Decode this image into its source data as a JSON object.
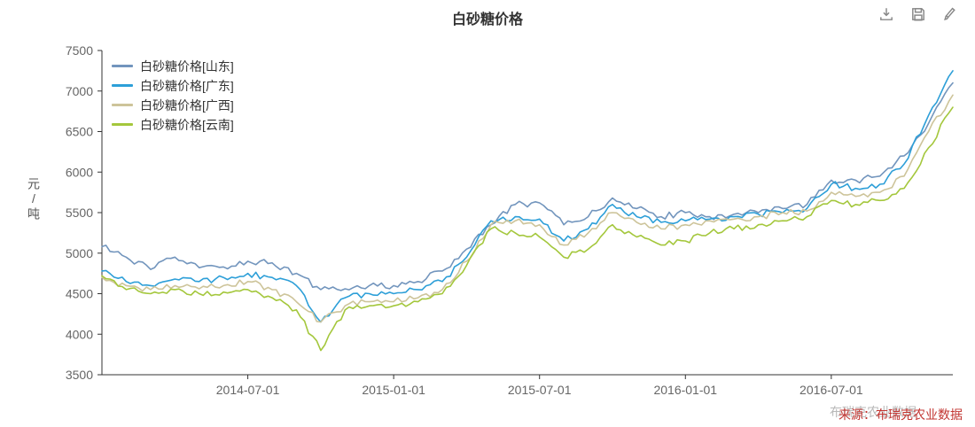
{
  "title": "白砂糖价格",
  "toolbox": {
    "icons": [
      "download-icon",
      "save-icon",
      "brush-icon"
    ]
  },
  "y_axis": {
    "name": "元/吨",
    "ticks": [
      3500,
      4000,
      4500,
      5000,
      5500,
      6000,
      6500,
      7000,
      7500
    ]
  },
  "x_axis": {
    "tick_labels": [
      "2014-07-01",
      "2015-01-01",
      "2015-07-01",
      "2016-01-01",
      "2016-07-01"
    ]
  },
  "legend": [
    "白砂糖价格[山东]",
    "白砂糖价格[广东]",
    "白砂糖价格[广西]",
    "白砂糖价格[云南]"
  ],
  "source": {
    "prefix": "来源：",
    "name": "布瑞克农业数据",
    "watermark": "布瑞克农业数据",
    "color": "#c23531"
  },
  "colors": {
    "axis": "#333333",
    "tick_text": "#666666"
  },
  "chart_data": {
    "type": "line",
    "title": "白砂糖价格",
    "ylabel": "元/吨",
    "ylim": [
      3500,
      7500
    ],
    "y_tick_step": 500,
    "grid": false,
    "legend_position": "top-left",
    "x": [
      "2014-01",
      "2014-02",
      "2014-03",
      "2014-04",
      "2014-05",
      "2014-06",
      "2014-07",
      "2014-08",
      "2014-09",
      "2014-10",
      "2014-11",
      "2014-12",
      "2015-01",
      "2015-02",
      "2015-03",
      "2015-04",
      "2015-05",
      "2015-06",
      "2015-07",
      "2015-08",
      "2015-09",
      "2015-10",
      "2015-11",
      "2015-12",
      "2016-01",
      "2016-02",
      "2016-03",
      "2016-04",
      "2016-05",
      "2016-06",
      "2016-07",
      "2016-08",
      "2016-09",
      "2016-10",
      "2016-11",
      "2016-12"
    ],
    "x_tick_labels": [
      "2014-07-01",
      "2015-01-01",
      "2015-07-01",
      "2016-01-01",
      "2016-07-01"
    ],
    "x_tick_indices": [
      6,
      12,
      18,
      24,
      30
    ],
    "series": [
      {
        "name": "白砂糖价格[山东]",
        "color": "#7295bd",
        "values": [
          5080,
          4950,
          4800,
          4950,
          4820,
          4830,
          4900,
          4880,
          4750,
          4550,
          4560,
          4600,
          4600,
          4650,
          4780,
          5050,
          5350,
          5600,
          5620,
          5350,
          5450,
          5680,
          5550,
          5450,
          5500,
          5450,
          5480,
          5500,
          5550,
          5600,
          5900,
          5900,
          5950,
          6200,
          6600,
          7100
        ]
      },
      {
        "name": "白砂糖价格[广东]",
        "color": "#2d9fd8",
        "values": [
          4780,
          4650,
          4600,
          4680,
          4650,
          4700,
          4750,
          4700,
          4600,
          4150,
          4450,
          4500,
          4500,
          4550,
          4650,
          4950,
          5400,
          5450,
          5420,
          5150,
          5300,
          5600,
          5450,
          5380,
          5400,
          5420,
          5450,
          5480,
          5500,
          5550,
          5850,
          5800,
          5850,
          6100,
          6700,
          7250
        ]
      },
      {
        "name": "白砂糖价格[广西]",
        "color": "#cdc49a",
        "values": [
          4700,
          4600,
          4550,
          4600,
          4560,
          4600,
          4650,
          4550,
          4400,
          4150,
          4350,
          4400,
          4400,
          4450,
          4550,
          4900,
          5350,
          5400,
          5350,
          5100,
          5250,
          5500,
          5380,
          5300,
          5350,
          5400,
          5420,
          5450,
          5500,
          5520,
          5750,
          5700,
          5750,
          5950,
          6500,
          6950
        ]
      },
      {
        "name": "白砂糖价格[云南]",
        "color": "#a4c73c",
        "values": [
          4720,
          4550,
          4500,
          4550,
          4500,
          4520,
          4550,
          4450,
          4300,
          3800,
          4300,
          4350,
          4350,
          4400,
          4500,
          4850,
          5300,
          5250,
          5200,
          4950,
          5050,
          5350,
          5200,
          5100,
          5150,
          5250,
          5300,
          5350,
          5400,
          5450,
          5650,
          5600,
          5650,
          5800,
          6300,
          6800
        ]
      }
    ]
  }
}
